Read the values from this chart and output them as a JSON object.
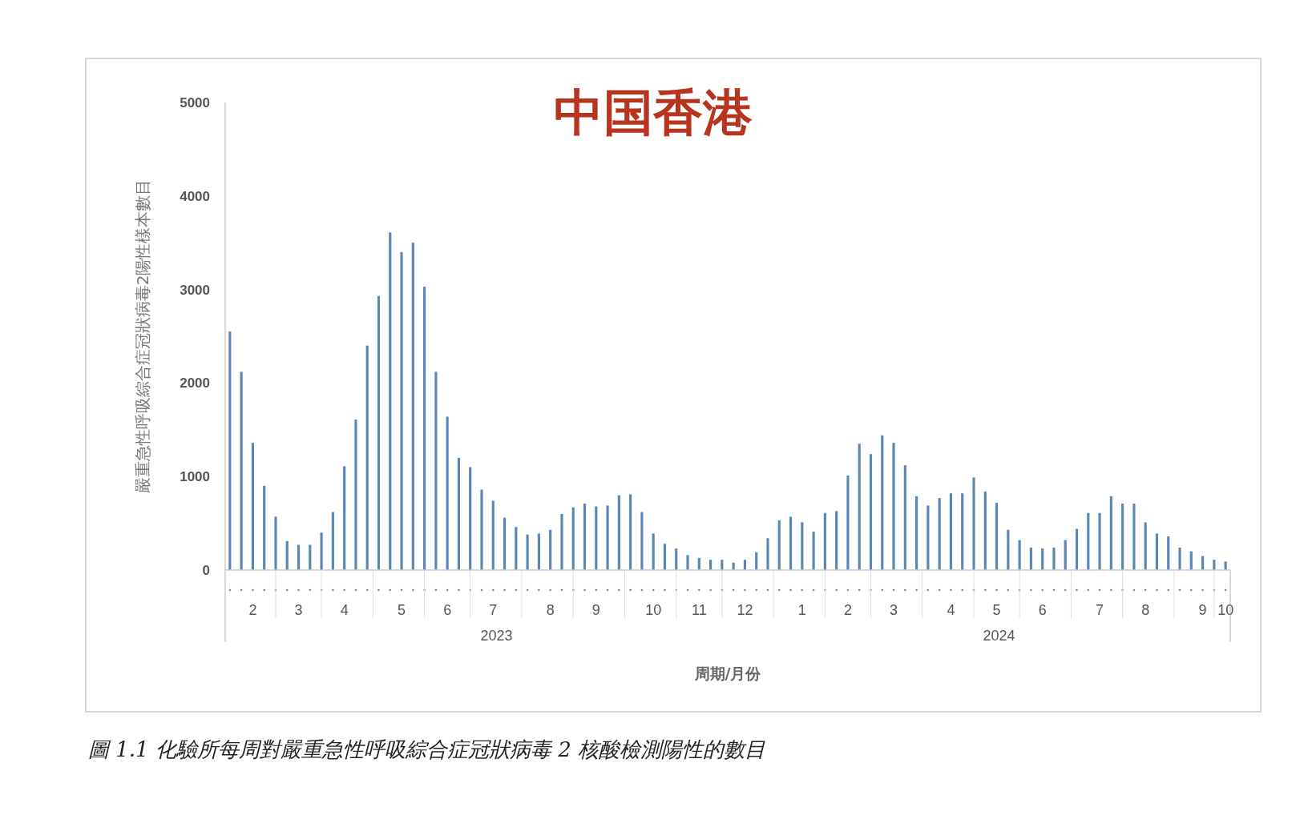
{
  "chart_data": {
    "type": "bar",
    "title": "中国香港",
    "ylabel": "嚴重急性呼吸綜合症冠狀病毒2陽性樣本數目",
    "xlabel": "周期/月份",
    "annotations": [
      "2023",
      "2024",
      "圖 1.1 化驗所每周對嚴重急性呼吸綜合症冠狀病毒 2 核酸檢測陽性的數目"
    ],
    "categories": [
      null,
      null,
      "2",
      null,
      null,
      null,
      "3",
      null,
      null,
      null,
      "4",
      null,
      null,
      null,
      null,
      "5",
      null,
      null,
      null,
      "6",
      null,
      null,
      null,
      "7",
      null,
      null,
      null,
      null,
      "8",
      null,
      null,
      null,
      "9",
      null,
      null,
      null,
      null,
      "10",
      null,
      null,
      null,
      "11",
      null,
      null,
      null,
      "12",
      null,
      null,
      null,
      null,
      "1",
      null,
      null,
      null,
      "2",
      null,
      null,
      null,
      "3",
      null,
      null,
      null,
      null,
      "4",
      null,
      null,
      null,
      "5",
      null,
      null,
      null,
      "6",
      null,
      null,
      null,
      null,
      "7",
      null,
      null,
      null,
      "8",
      null,
      null,
      null,
      null,
      "9",
      null,
      "10"
    ],
    "values": [
      2550,
      2120,
      1360,
      900,
      570,
      310,
      270,
      270,
      400,
      620,
      1110,
      1610,
      2400,
      2930,
      3610,
      3400,
      3500,
      3030,
      2120,
      1640,
      1200,
      1100,
      860,
      740,
      560,
      460,
      380,
      390,
      430,
      600,
      670,
      710,
      680,
      690,
      800,
      810,
      620,
      390,
      280,
      230,
      160,
      130,
      110,
      110,
      80,
      110,
      190,
      340,
      530,
      570,
      510,
      410,
      610,
      630,
      1010,
      1350,
      1240,
      1440,
      1360,
      1120,
      790,
      690,
      770,
      820,
      820,
      990,
      840,
      720,
      430,
      320,
      240,
      230,
      240,
      320,
      440,
      610,
      610,
      790,
      710,
      710,
      510,
      390,
      360,
      240,
      200,
      150,
      110,
      90
    ],
    "color": "#5b86b8",
    "ylim": [
      0,
      5000
    ],
    "yticks": [
      0,
      1000,
      2000,
      3000,
      4000,
      5000
    ],
    "grid": false
  }
}
